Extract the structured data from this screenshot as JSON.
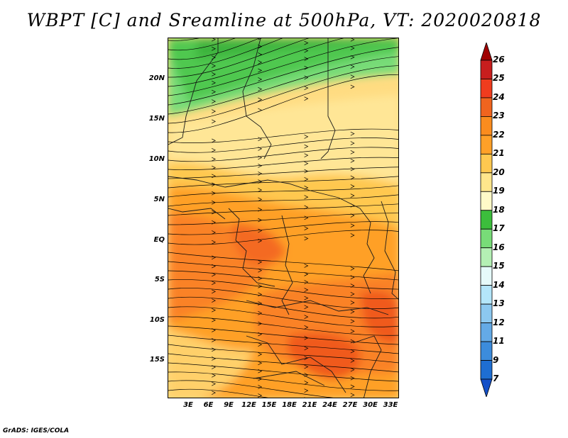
{
  "title": "WBPT [C] and Sreamline at 500hPa, VT: 2020020818",
  "footer": "GrADS: IGES/COLA",
  "map": {
    "lat_labels": [
      "20N",
      "15N",
      "10N",
      "5N",
      "EQ",
      "5S",
      "10S",
      "15S"
    ],
    "lon_labels": [
      "3E",
      "6E",
      "9E",
      "12E",
      "15E",
      "18E",
      "21E",
      "24E",
      "27E",
      "30E",
      "33E"
    ],
    "colors": {
      "green_dark": "#3cb43c",
      "green_mid": "#50c850",
      "green_light": "#78dc78",
      "yellow_light": "#fff0a8",
      "yellow": "#ffdc82",
      "orange_light": "#ffc850",
      "orange": "#ffa028",
      "orange_dark": "#fa8228",
      "red_orange": "#f05a1e"
    }
  },
  "colorbar": {
    "levels": [
      "26",
      "25",
      "24",
      "23",
      "22",
      "21",
      "20",
      "19",
      "18",
      "17",
      "16",
      "15",
      "14",
      "13",
      "12",
      "11",
      "9",
      "7"
    ],
    "segment_colors": [
      "#a00000",
      "#c81e1e",
      "#f03c1e",
      "#f0641e",
      "#fa8c1e",
      "#ffa028",
      "#ffc850",
      "#ffe68c",
      "#fffac8",
      "#3cbe3c",
      "#78dc78",
      "#b4f0b4",
      "#e6fafa",
      "#b4e6fa",
      "#8cc8f0",
      "#64aae6",
      "#3c8cdc",
      "#1e6ed2",
      "#1450c8"
    ]
  }
}
